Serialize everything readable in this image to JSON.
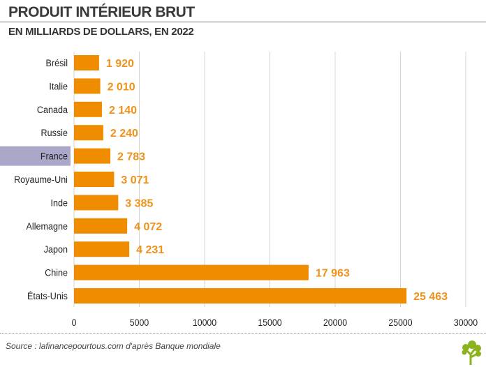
{
  "chart_data": {
    "type": "bar",
    "orientation": "horizontal",
    "title": "PRODUIT INTÉRIEUR BRUT",
    "subtitle": "EN MILLIARDS DE DOLLARS, EN 2022",
    "categories": [
      "Brésil",
      "Italie",
      "Canada",
      "Russie",
      "France",
      "Royaume-Uni",
      "Inde",
      "Allemagne",
      "Japon",
      "Chine",
      "États-Unis"
    ],
    "values": [
      1920,
      2010,
      2140,
      2240,
      2783,
      3071,
      3385,
      4072,
      4231,
      17963,
      25463
    ],
    "value_labels": [
      "1 920",
      "2 010",
      "2 140",
      "2 240",
      "2 783",
      "3 071",
      "3 385",
      "4 072",
      "4 231",
      "17 963",
      "25 463"
    ],
    "highlight": "France",
    "xlim": [
      0,
      30000
    ],
    "xticks": [
      "0",
      "5000",
      "10000",
      "15000",
      "20000",
      "25000",
      "30000"
    ],
    "grid": true,
    "colors": {
      "bar": "#ef8c00",
      "label": "#f0921a",
      "highlight": "#aaa7c9"
    }
  },
  "source": "Source : lafinancepourtous.com d'après Banque mondiale"
}
